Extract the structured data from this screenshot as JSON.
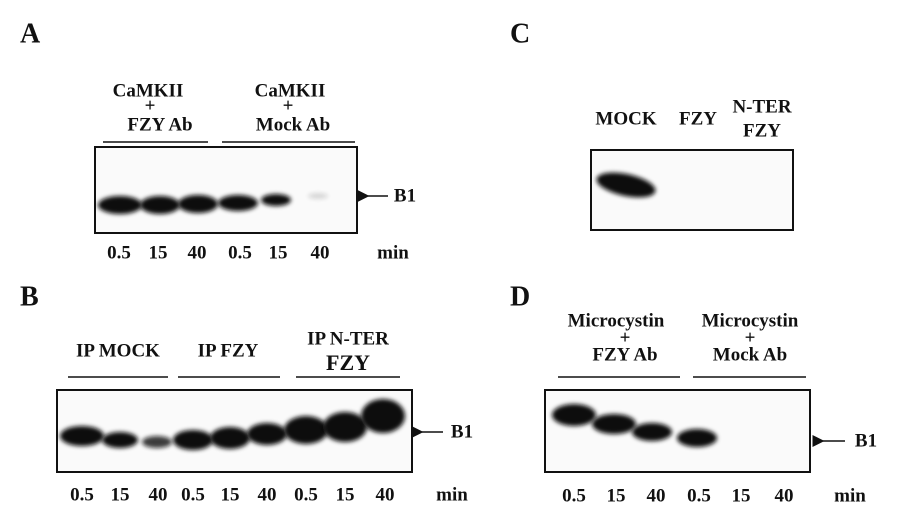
{
  "panels": [
    {
      "letter": "A",
      "groups": [
        {
          "top": "CaMKII",
          "plus": "+",
          "bottom": "FZY Ab"
        },
        {
          "top": "CaMKII",
          "plus": "+",
          "bottom": "Mock Ab"
        }
      ],
      "lanes": [
        "0.5",
        "15",
        "40",
        "0.5",
        "15",
        "40"
      ],
      "unit": "min",
      "band": "B1"
    },
    {
      "letter": "B",
      "groups": [
        {
          "top": "IP MOCK"
        },
        {
          "top": "IP FZY"
        },
        {
          "top": "IP N-TER",
          "bottom": "FZY"
        }
      ],
      "lanes": [
        "0.5",
        "15",
        "40",
        "0.5",
        "15",
        "40",
        "0.5",
        "15",
        "40"
      ],
      "unit": "min",
      "band": "B1"
    },
    {
      "letter": "C",
      "lane_titles": [
        {
          "top": "MOCK"
        },
        {
          "top": "FZY"
        },
        {
          "top": "N-TER",
          "bottom": "FZY"
        }
      ]
    },
    {
      "letter": "D",
      "groups": [
        {
          "top": "Microcystin",
          "plus": "+",
          "bottom": "FZY Ab"
        },
        {
          "top": "Microcystin",
          "plus": "+",
          "bottom": "Mock Ab"
        }
      ],
      "lanes": [
        "0.5",
        "15",
        "40",
        "0.5",
        "15",
        "40"
      ],
      "unit": "min",
      "band": "B1"
    }
  ]
}
